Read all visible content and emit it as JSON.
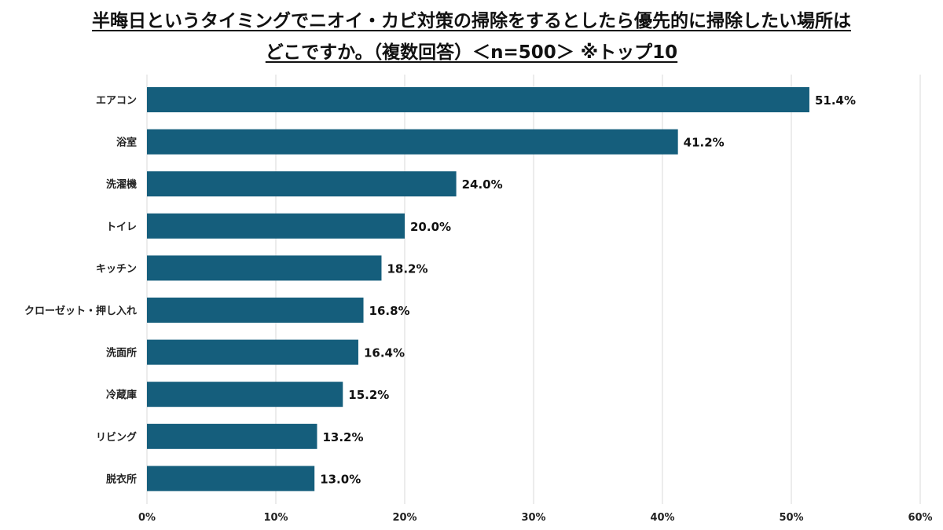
{
  "chart_data": {
    "type": "bar",
    "orientation": "horizontal",
    "title_lines": [
      "半晦日というタイミングでニオイ・カビ対策の掃除をするとしたら優先的に掃除したい場所は",
      "どこですか。（複数回答）＜n=500＞ ※トップ10"
    ],
    "categories": [
      "エアコン",
      "浴室",
      "洗濯機",
      "トイレ",
      "キッチン",
      "クローゼット・押し入れ",
      "洗面所",
      "冷蔵庫",
      "リビング",
      "脱衣所"
    ],
    "values": [
      51.4,
      41.2,
      24.0,
      20.0,
      18.2,
      16.8,
      16.4,
      15.2,
      13.2,
      13.0
    ],
    "value_labels": [
      "51.4%",
      "41.2%",
      "24.0%",
      "20.0%",
      "18.2%",
      "16.8%",
      "16.4%",
      "15.2%",
      "13.2%",
      "13.0%"
    ],
    "xlim": [
      0,
      60
    ],
    "x_ticks": [
      0,
      10,
      20,
      30,
      40,
      50,
      60
    ],
    "x_tick_labels": [
      "0%",
      "10%",
      "20%",
      "30%",
      "40%",
      "50%",
      "60%"
    ],
    "grid": "vertical",
    "legend": "none",
    "bar_color": "#155e7c",
    "grid_color": "#d9d9d9"
  }
}
